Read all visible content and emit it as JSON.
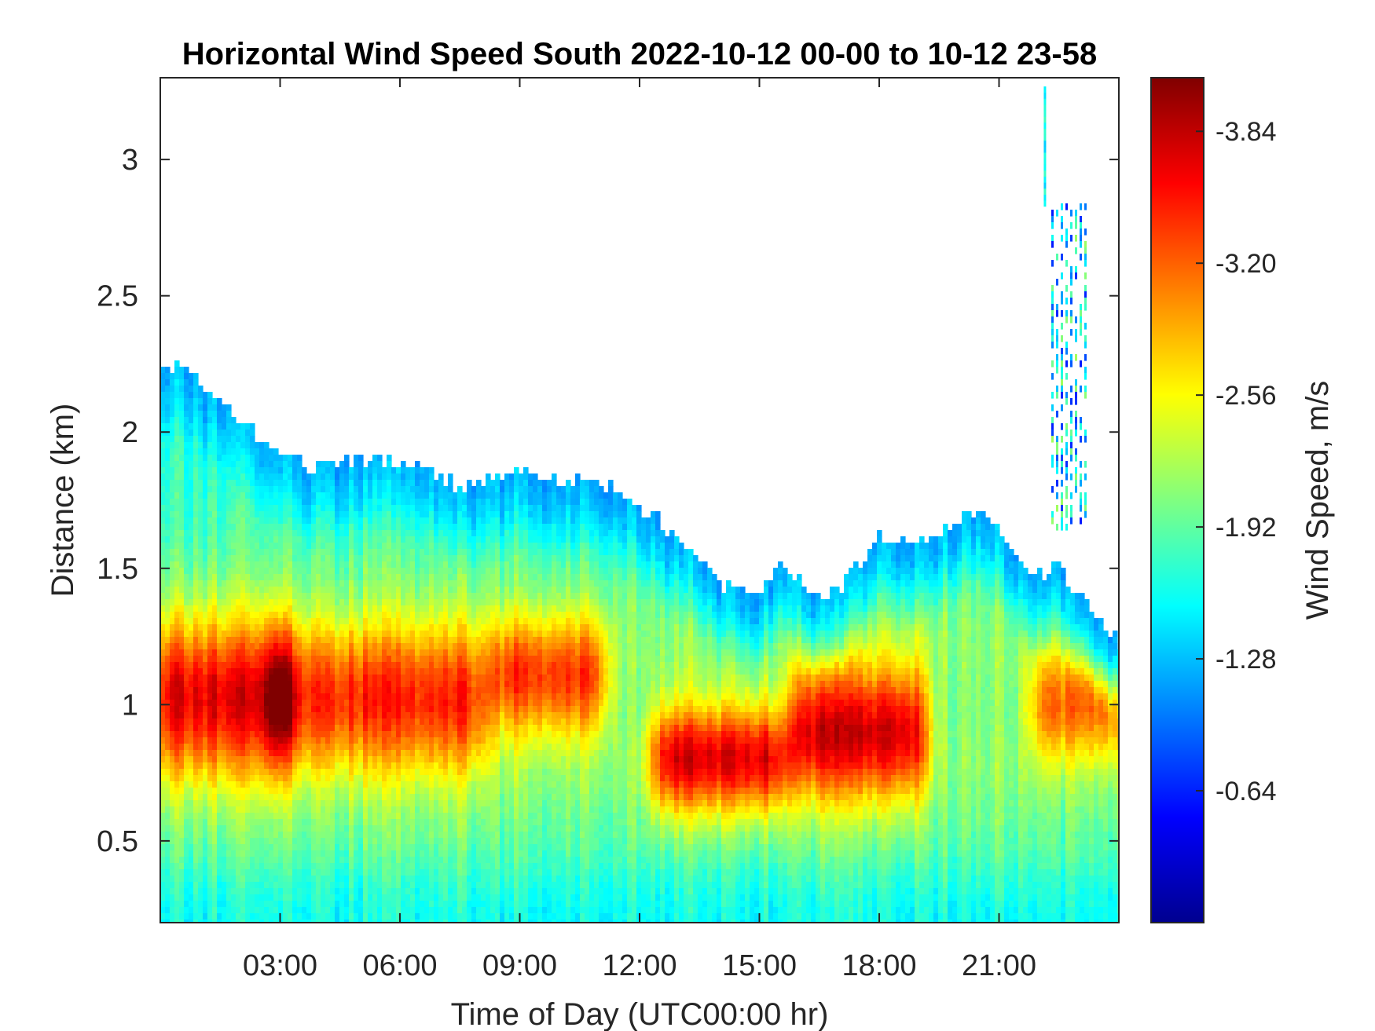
{
  "chart_data": {
    "type": "heatmap",
    "title": "Horizontal Wind Speed South 2022-10-12 00-00 to 10-12 23-58",
    "xlabel": "Time of Day (UTC00:00 hr)",
    "ylabel": "Distance (km)",
    "colorbar_label": "Wind Speed, m/s",
    "colormap": "jet",
    "x_unit": "hour",
    "xlim": [
      0,
      24
    ],
    "ylim": [
      0.2,
      3.3
    ],
    "x_ticks": [
      3,
      6,
      9,
      12,
      15,
      18,
      21
    ],
    "x_tick_labels": [
      "03:00",
      "06:00",
      "09:00",
      "12:00",
      "15:00",
      "18:00",
      "21:00"
    ],
    "y_ticks": [
      0.5,
      1,
      1.5,
      2,
      2.5,
      3
    ],
    "y_tick_labels": [
      "0.5",
      "1",
      "1.5",
      "2",
      "2.5",
      "3"
    ],
    "color_range": [
      0,
      -4.1
    ],
    "colorbar_ticks": [
      -0.64,
      -1.28,
      -1.92,
      -2.56,
      -3.2,
      -3.84
    ],
    "colorbar_tick_labels": [
      "-0.64",
      "-1.28",
      "-1.92",
      "-2.56",
      "-3.20",
      "-3.84"
    ],
    "data_top_km": {
      "time_hr": [
        0,
        0.5,
        1,
        1.5,
        2,
        2.5,
        3,
        4,
        5,
        6,
        7,
        7.5,
        8,
        9,
        10,
        11,
        11.5,
        12,
        12.5,
        13,
        14,
        15,
        15.5,
        16,
        16.5,
        17,
        18,
        19,
        20,
        20.5,
        21,
        21.5,
        22,
        22.5,
        23,
        24
      ],
      "top_km": [
        2.22,
        2.25,
        2.18,
        2.12,
        2.05,
        1.98,
        1.9,
        1.88,
        1.9,
        1.9,
        1.85,
        1.78,
        1.82,
        1.85,
        1.82,
        1.8,
        1.78,
        1.72,
        1.68,
        1.6,
        1.45,
        1.4,
        1.5,
        1.45,
        1.38,
        1.42,
        1.62,
        1.58,
        1.68,
        1.72,
        1.62,
        1.52,
        1.48,
        1.5,
        1.4,
        1.22
      ]
    },
    "jet_core": [
      {
        "time_hr": [
          0,
          3
        ],
        "center_km": 1.02,
        "half_width_km": 0.28,
        "peak_speed": -3.3
      },
      {
        "time_hr": [
          3,
          8
        ],
        "center_km": 1.02,
        "half_width_km": 0.26,
        "peak_speed": -3.05
      },
      {
        "time_hr": [
          8.5,
          11
        ],
        "center_km": 1.1,
        "half_width_km": 0.22,
        "peak_speed": -3.0
      },
      {
        "time_hr": [
          12.5,
          15.5
        ],
        "center_km": 0.8,
        "half_width_km": 0.2,
        "peak_speed": -3.3
      },
      {
        "time_hr": [
          16,
          19
        ],
        "center_km": 0.9,
        "half_width_km": 0.25,
        "peak_speed": -3.35
      },
      {
        "time_hr": [
          22,
          24
        ],
        "center_km": 1.0,
        "half_width_km": 0.2,
        "peak_speed": -2.8
      }
    ],
    "upper_patch_km": {
      "time_hr": [
        22.3,
        23.3
      ],
      "min_km": 1.65,
      "max_km": 2.85,
      "speed_range": [
        -0.6,
        -2.2
      ]
    },
    "grid": false,
    "colorbar_position": "right"
  }
}
